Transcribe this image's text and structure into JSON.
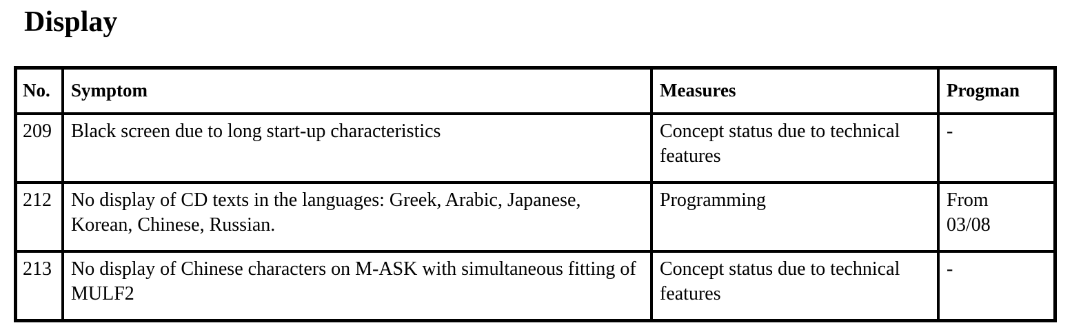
{
  "title": "Display",
  "table": {
    "headers": [
      "No.",
      "Symptom",
      "Measures",
      "Progman"
    ],
    "rows": [
      {
        "no": "209",
        "symptom": "Black screen due to long start-up characteristics",
        "measures": "Concept status due to technical features",
        "progman": "-"
      },
      {
        "no": "212",
        "symptom": "No display of CD texts in the languages: Greek, Arabic, Japanese, Korean, Chinese, Russian.",
        "measures": "Programming",
        "progman": "From 03/08"
      },
      {
        "no": "213",
        "symptom": "No display of Chinese characters on M-ASK with simultaneous fitting of MULF2",
        "measures": "Concept status due to technical features",
        "progman": "-"
      }
    ]
  }
}
